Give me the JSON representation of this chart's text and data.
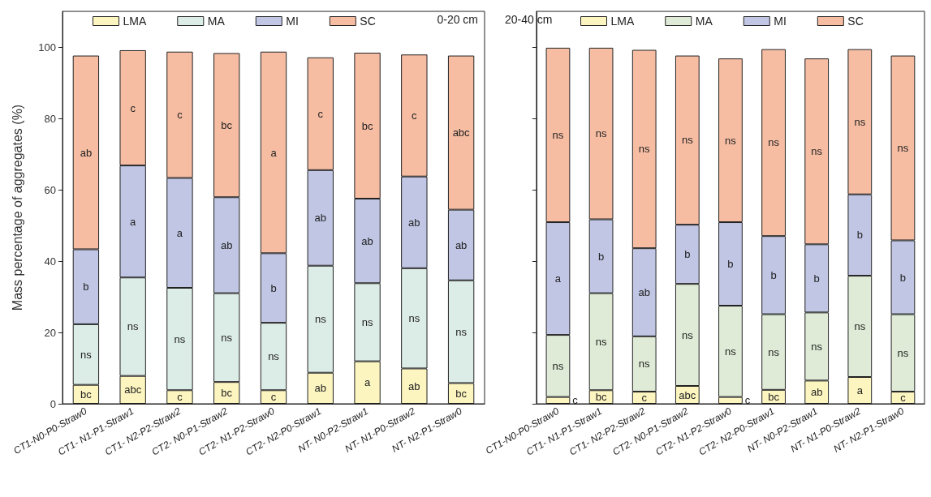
{
  "chart_data": [
    {
      "type": "bar",
      "stacked": true,
      "ylabel": "Mass percentage of aggregates (%)",
      "annotations": [
        "0-20 cm"
      ],
      "legend": "top",
      "grid": false,
      "categories": [
        "CT1-N0-P0-Straw0",
        "CT1- N1-P1-Straw1",
        "CT1- N2-P2-Straw2",
        "CT2- N0-P1-Straw2",
        "CT2- N1-P2-Straw0",
        "CT2- N2-P0-Straw1",
        "NT- N0-P2-Straw1",
        "NT- N1-P0-Straw2",
        "NT- N2-P1-Straw0"
      ],
      "ylim": [
        0,
        110
      ],
      "yticks": [
        0,
        20,
        40,
        60,
        80,
        100
      ],
      "series": [
        {
          "name": "LMA",
          "color": "#fdf5c0",
          "values": [
            5.3,
            7.8,
            3.8,
            6.1,
            3.8,
            8.7,
            11.9,
            9.9,
            5.8
          ],
          "value_labels": [
            "bc",
            "abc",
            "c",
            "bc",
            "c",
            "ab",
            "a",
            "ab",
            "bc"
          ]
        },
        {
          "name": "MA",
          "color": "#dcece6",
          "values": [
            17.0,
            27.6,
            28.7,
            24.9,
            18.9,
            30.0,
            21.9,
            28.1,
            28.8
          ],
          "value_labels": [
            "ns",
            "ns",
            "ns",
            "ns",
            "ns",
            "ns",
            "ns",
            "ns",
            "ns"
          ]
        },
        {
          "name": "MI",
          "color": "#c0c6e4",
          "values": [
            21.0,
            31.4,
            30.8,
            26.9,
            19.5,
            26.8,
            23.7,
            25.7,
            19.8
          ],
          "value_labels": [
            "b",
            "a",
            "a",
            "ab",
            "b",
            "ab",
            "ab",
            "ab",
            "ab"
          ]
        },
        {
          "name": "SC",
          "color": "#f6bda3",
          "values": [
            54.3,
            32.3,
            35.4,
            40.4,
            56.5,
            31.6,
            40.9,
            34.2,
            43.2
          ],
          "value_labels": [
            "ab",
            "c",
            "c",
            "bc",
            "a",
            "c",
            "bc",
            "c",
            "abc"
          ]
        }
      ]
    },
    {
      "type": "bar",
      "stacked": true,
      "annotations": [
        "20-40 cm"
      ],
      "legend": "top",
      "grid": false,
      "tick_labels": "x",
      "categories": [
        "CT1-N0-P0-Straw0",
        "CT1- N1-P1-Straw1",
        "CT1- N2-P2-Straw2",
        "CT2- N0-P1-Straw2",
        "CT2- N1-P2-Straw0",
        "CT2- N2-P0-Straw1",
        "NT- N0-P2-Straw1",
        "NT- N1-P0-Straw2",
        "NT- N2-P1-Straw0"
      ],
      "ylim": [
        0,
        110
      ],
      "yticks": [
        0,
        20,
        40,
        60,
        80,
        100
      ],
      "series": [
        {
          "name": "LMA",
          "color": "#fdf5c0",
          "values": [
            1.9,
            3.8,
            3.4,
            5.0,
            1.9,
            3.9,
            6.5,
            7.5,
            3.4
          ],
          "value_labels": [
            "c",
            "bc",
            "c",
            "abc",
            "c",
            "bc",
            "ab",
            "a",
            "c"
          ]
        },
        {
          "name": "MA",
          "color": "#dfebd6",
          "values": [
            17.4,
            27.2,
            15.5,
            28.6,
            25.6,
            21.2,
            19.1,
            28.4,
            21.7
          ],
          "value_labels": [
            "ns",
            "ns",
            "ns",
            "ns",
            "ns",
            "ns",
            "ns",
            "ns",
            "ns"
          ]
        },
        {
          "name": "MI",
          "color": "#c0c6e4",
          "values": [
            31.6,
            20.7,
            24.7,
            16.6,
            23.4,
            21.9,
            19.1,
            22.8,
            20.7
          ],
          "value_labels": [
            "a",
            "b",
            "ab",
            "b",
            "b",
            "b",
            "b",
            "b",
            "b"
          ]
        },
        {
          "name": "SC",
          "color": "#f6bda3",
          "values": [
            48.9,
            48.1,
            55.6,
            47.4,
            45.9,
            52.4,
            52.1,
            40.7,
            51.8
          ],
          "value_labels": [
            "ns",
            "ns",
            "ns",
            "ns",
            "ns",
            "ns",
            "ns",
            "ns",
            "ns"
          ]
        }
      ]
    }
  ]
}
